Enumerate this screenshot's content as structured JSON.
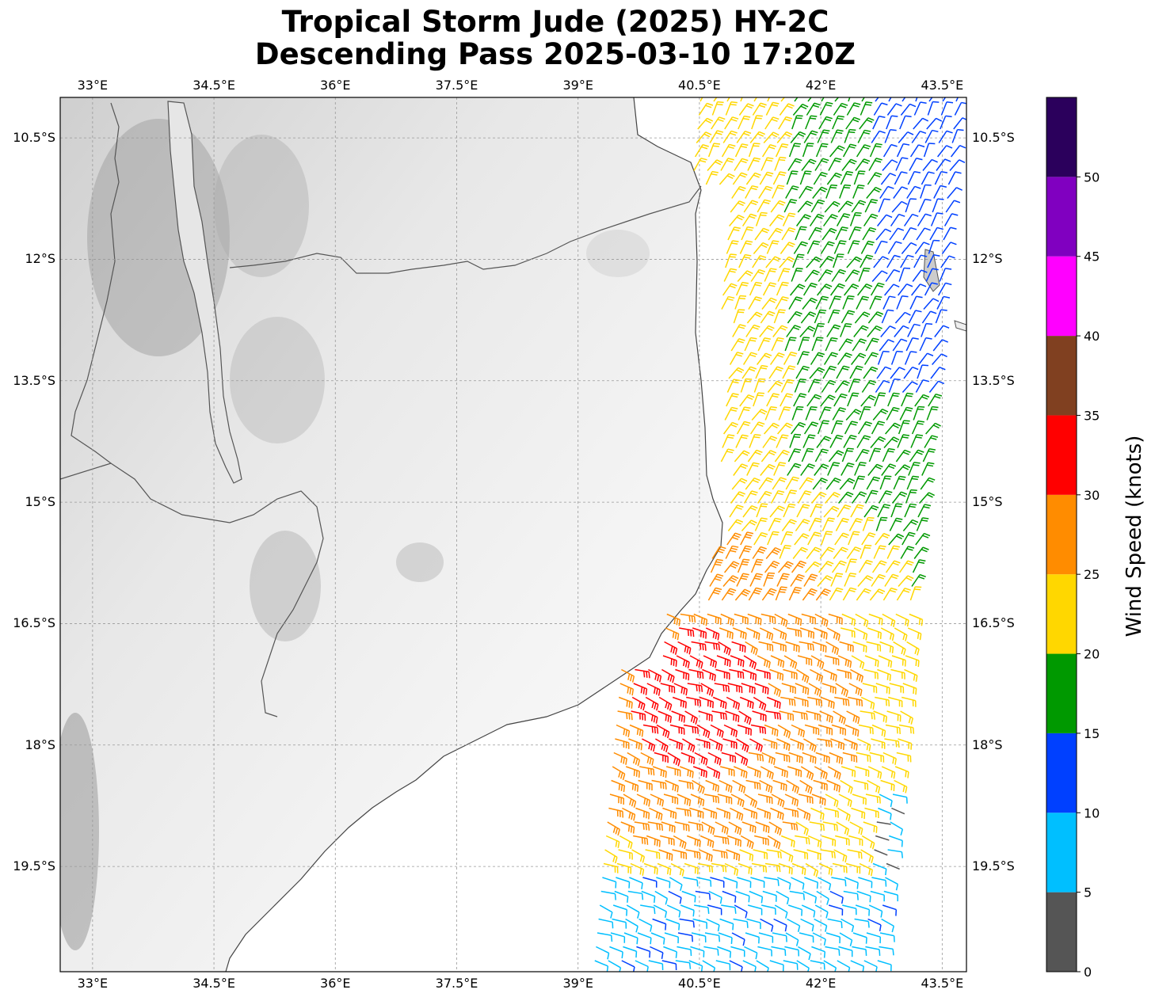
{
  "title": {
    "line1": "Tropical Storm Jude (2025) HY-2C",
    "line2": "Descending Pass 2025-03-10 17:20Z"
  },
  "map": {
    "lon_range": [
      32.6,
      43.8
    ],
    "lat_range": [
      -20.8,
      -10.0
    ],
    "lon_ticks": [
      {
        "value": 33.0,
        "label": "33°E"
      },
      {
        "value": 34.5,
        "label": "34.5°E"
      },
      {
        "value": 36.0,
        "label": "36°E"
      },
      {
        "value": 37.5,
        "label": "37.5°E"
      },
      {
        "value": 39.0,
        "label": "39°E"
      },
      {
        "value": 40.5,
        "label": "40.5°E"
      },
      {
        "value": 42.0,
        "label": "42°E"
      },
      {
        "value": 43.5,
        "label": "43.5°E"
      }
    ],
    "lat_ticks": [
      {
        "value": -10.5,
        "label": "10.5°S"
      },
      {
        "value": -12.0,
        "label": "12°S"
      },
      {
        "value": -13.5,
        "label": "13.5°S"
      },
      {
        "value": -15.0,
        "label": "15°S"
      },
      {
        "value": -16.5,
        "label": "16.5°S"
      },
      {
        "value": -18.0,
        "label": "18°S"
      },
      {
        "value": -19.5,
        "label": "19.5°S"
      }
    ],
    "gridlines": true,
    "background": "grayscale terrain"
  },
  "colorbar": {
    "label": "Wind Speed (knots)",
    "ticks": [
      "0",
      "5",
      "10",
      "15",
      "20",
      "25",
      "30",
      "35",
      "40",
      "45",
      "50"
    ],
    "bins": [
      {
        "min": 0,
        "max": 5,
        "color": "#555555"
      },
      {
        "min": 5,
        "max": 10,
        "color": "#00bfff"
      },
      {
        "min": 10,
        "max": 15,
        "color": "#0040ff"
      },
      {
        "min": 15,
        "max": 20,
        "color": "#009900"
      },
      {
        "min": 20,
        "max": 25,
        "color": "#ffd700"
      },
      {
        "min": 25,
        "max": 30,
        "color": "#ff8c00"
      },
      {
        "min": 30,
        "max": 35,
        "color": "#ff0000"
      },
      {
        "min": 35,
        "max": 40,
        "color": "#804020"
      },
      {
        "min": 40,
        "max": 45,
        "color": "#ff00ff"
      },
      {
        "min": 45,
        "max": 50,
        "color": "#8000c0"
      },
      {
        "min": 50,
        "max": 55,
        "color": "#2b005c"
      }
    ]
  }
}
